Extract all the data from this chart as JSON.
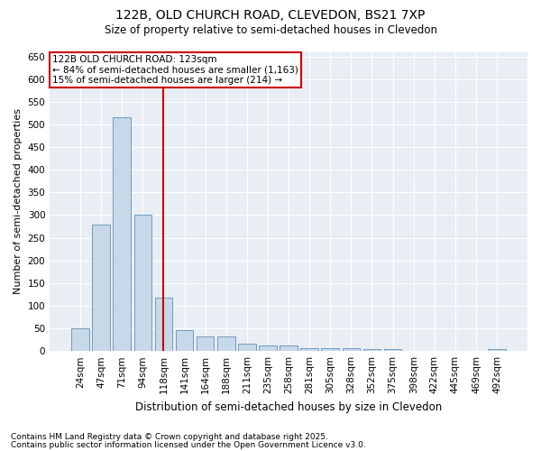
{
  "title_line1": "122B, OLD CHURCH ROAD, CLEVEDON, BS21 7XP",
  "title_line2": "Size of property relative to semi-detached houses in Clevedon",
  "xlabel": "Distribution of semi-detached houses by size in Clevedon",
  "ylabel": "Number of semi-detached properties",
  "categories": [
    "24sqm",
    "47sqm",
    "71sqm",
    "94sqm",
    "118sqm",
    "141sqm",
    "164sqm",
    "188sqm",
    "211sqm",
    "235sqm",
    "258sqm",
    "281sqm",
    "305sqm",
    "328sqm",
    "352sqm",
    "375sqm",
    "398sqm",
    "422sqm",
    "445sqm",
    "469sqm",
    "492sqm"
  ],
  "values": [
    50,
    278,
    515,
    300,
    117,
    46,
    32,
    32,
    16,
    13,
    13,
    7,
    7,
    7,
    4,
    4,
    1,
    1,
    1,
    1,
    4
  ],
  "bar_color": "#c8d8e8",
  "bar_edge_color": "#6090b8",
  "vline_color": "#cc0000",
  "vline_x": 4.5,
  "annotation_title": "122B OLD CHURCH ROAD: 123sqm",
  "annotation_line1": "← 84% of semi-detached houses are smaller (1,163)",
  "annotation_line2": "15% of semi-detached houses are larger (214) →",
  "annotation_box_facecolor": "white",
  "annotation_box_edgecolor": "#cc0000",
  "ylim": [
    0,
    660
  ],
  "yticks": [
    0,
    50,
    100,
    150,
    200,
    250,
    300,
    350,
    400,
    450,
    500,
    550,
    600,
    650
  ],
  "footnote_line1": "Contains HM Land Registry data © Crown copyright and database right 2025.",
  "footnote_line2": "Contains public sector information licensed under the Open Government Licence v3.0.",
  "fig_facecolor": "#ffffff",
  "plot_facecolor": "#e8eef4",
  "grid_color": "#ffffff",
  "title_fontsize": 10,
  "subtitle_fontsize": 8.5,
  "ylabel_fontsize": 8,
  "xlabel_fontsize": 8.5,
  "tick_fontsize": 7.5,
  "annot_fontsize": 7.5,
  "footnote_fontsize": 6.5
}
